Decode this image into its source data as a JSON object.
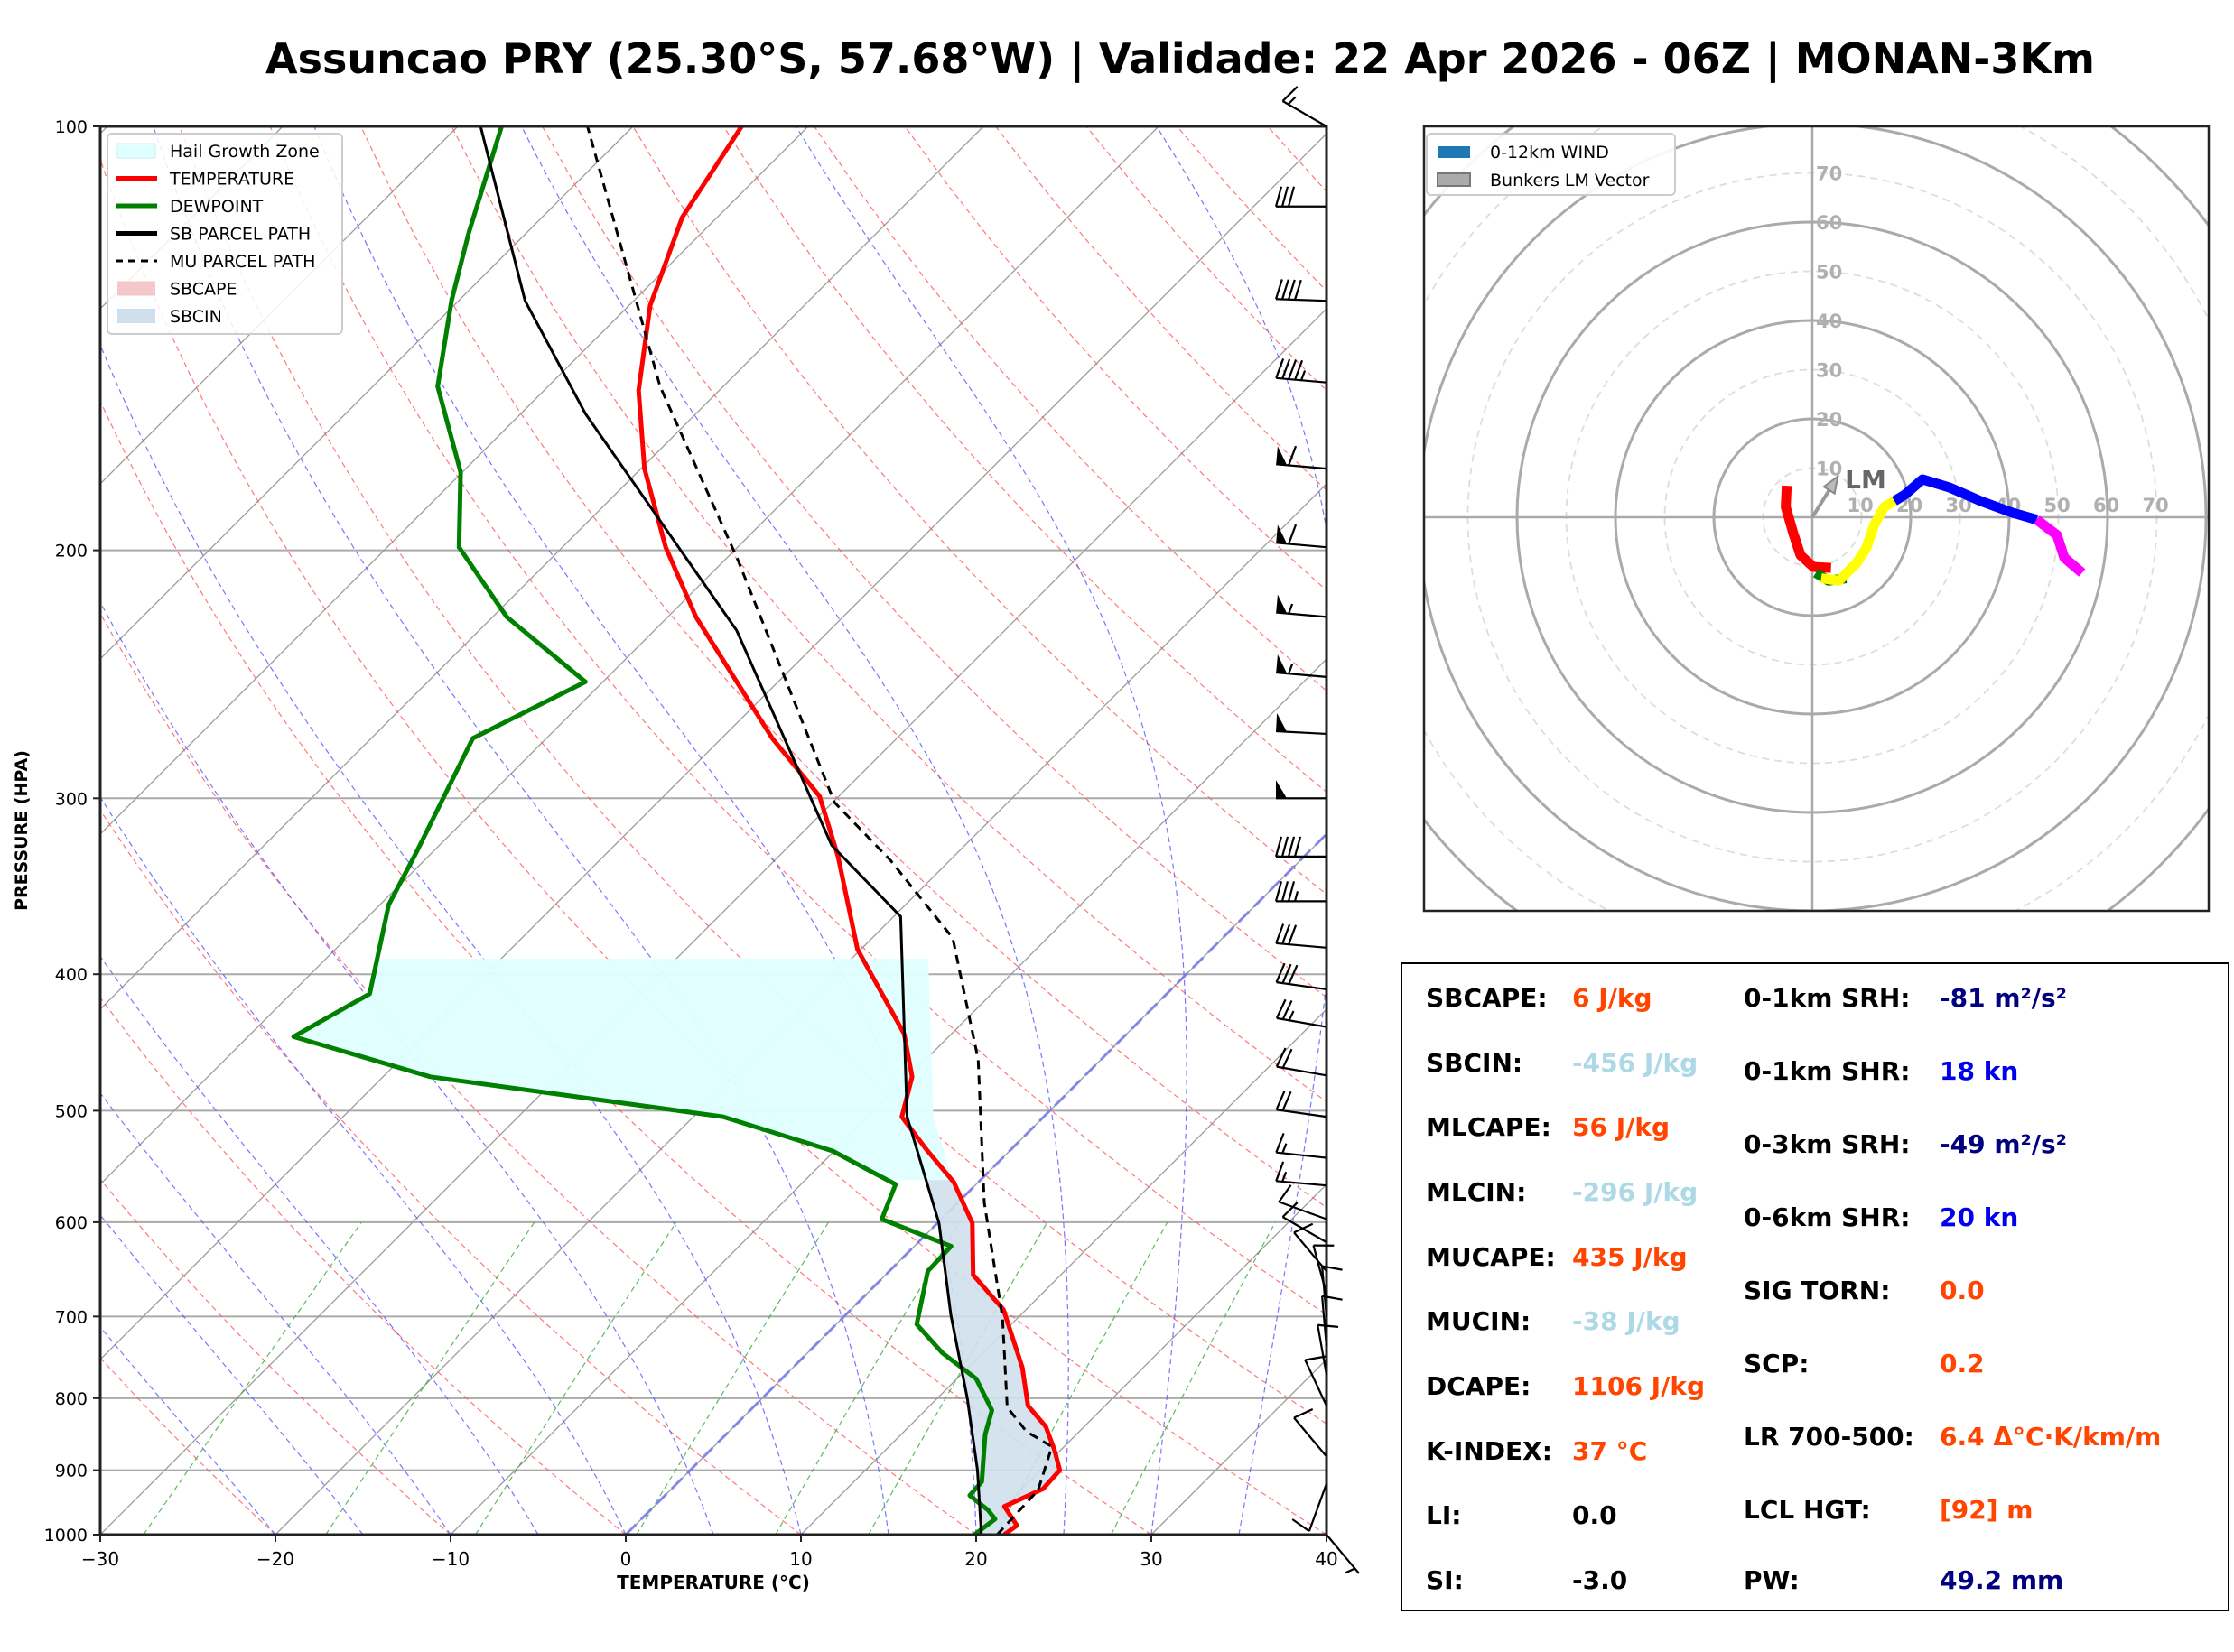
{
  "title": "Assuncao PRY (25.30°S, 57.68°W) | Validade: 22 Apr 2026 - 06Z | MONAN-3Km",
  "chart_data": [
    {
      "type": "line",
      "subtype": "skew-t log-p",
      "xlabel": "TEMPERATURE (°C)",
      "ylabel": "PRESSURE (HPA)",
      "xlim": [
        -30,
        40
      ],
      "ylim": [
        1000,
        100
      ],
      "y_scale": "log",
      "grid": true,
      "x_ticks": [
        -30,
        -20,
        -10,
        0,
        10,
        20,
        30,
        40
      ],
      "x_tick_labels": [
        "−30",
        "−20",
        "−10",
        "0",
        "10",
        "20",
        "30",
        "40"
      ],
      "y_ticks": [
        1000,
        900,
        800,
        700,
        600,
        500,
        400,
        300,
        200,
        100
      ],
      "y_tick_labels": [
        "1000",
        "900",
        "800",
        "700",
        "600",
        "500",
        "400",
        "300",
        "200",
        "100"
      ],
      "legend_position": "top-left",
      "legend": [
        {
          "label": "Hail Growth Zone",
          "kind": "patch",
          "color": "#e0ffff"
        },
        {
          "label": "TEMPERATURE",
          "kind": "line",
          "color": "#ff0000"
        },
        {
          "label": "DEWPOINT",
          "kind": "line",
          "color": "#008000"
        },
        {
          "label": "SB PARCEL PATH",
          "kind": "line",
          "color": "#000000"
        },
        {
          "label": "MU PARCEL PATH",
          "kind": "dashed",
          "color": "#000000"
        },
        {
          "label": "SBCAPE",
          "kind": "patch",
          "color": "#f4c7cb"
        },
        {
          "label": "SBCIN",
          "kind": "patch",
          "color": "#cfe0ec"
        }
      ],
      "series": [
        {
          "name": "TEMPERATURE",
          "color": "#ff0000",
          "points": [
            [
              1000,
              21.6
            ],
            [
              985,
              21.8
            ],
            [
              955,
              20.0
            ],
            [
              928,
              21.2
            ],
            [
              900,
              21.1
            ],
            [
              870,
              19.6
            ],
            [
              838,
              17.8
            ],
            [
              810,
              15.6
            ],
            [
              761,
              13.1
            ],
            [
              692,
              8.7
            ],
            [
              654,
              5.0
            ],
            [
              601,
              2.0
            ],
            [
              562,
              -1.4
            ],
            [
              533,
              -4.8
            ],
            [
              505,
              -8.1
            ],
            [
              473,
              -9.8
            ],
            [
              441,
              -12.7
            ],
            [
              384,
              -20.2
            ],
            [
              330,
              -26.6
            ],
            [
              299,
              -31.1
            ],
            [
              272,
              -37.1
            ],
            [
              223,
              -48.4
            ],
            [
              199,
              -54.1
            ],
            [
              175,
              -59.8
            ],
            [
              154,
              -64.6
            ],
            [
              134,
              -68.8
            ],
            [
              116,
              -72.0
            ],
            [
              100,
              -73.8
            ]
          ]
        },
        {
          "name": "DEWPOINT",
          "color": "#008000",
          "points": [
            [
              1000,
              19.9
            ],
            [
              975,
              20.2
            ],
            [
              961,
              19.3
            ],
            [
              938,
              17.4
            ],
            [
              917,
              17.3
            ],
            [
              849,
              14.8
            ],
            [
              816,
              13.8
            ],
            [
              775,
              11.1
            ],
            [
              743,
              7.7
            ],
            [
              709,
              4.6
            ],
            [
              650,
              2.2
            ],
            [
              624,
              2.1
            ],
            [
              597,
              -3.4
            ],
            [
              564,
              -4.6
            ],
            [
              534,
              -10.1
            ],
            [
              505,
              -18.3
            ],
            [
              473,
              -37.3
            ],
            [
              443,
              -47.4
            ],
            [
              413,
              -45.5
            ],
            [
              357,
              -49.5
            ],
            [
              328,
              -50.9
            ],
            [
              272,
              -54.2
            ],
            [
              248,
              -51.0
            ],
            [
              223,
              -59.2
            ],
            [
              199,
              -65.9
            ],
            [
              176,
              -70.1
            ],
            [
              153,
              -76.3
            ],
            [
              133,
              -80.4
            ],
            [
              119,
              -83.3
            ],
            [
              100,
              -87.5
            ]
          ]
        },
        {
          "name": "SB PARCEL PATH",
          "color": "#000000",
          "points": [
            [
              1000,
              20.3
            ],
            [
              900,
              16.4
            ],
            [
              800,
              11.7
            ],
            [
              698,
              6.0
            ],
            [
              601,
              0.1
            ],
            [
              505,
              -7.8
            ],
            [
              364,
              -19.6
            ],
            [
              324,
              -27.6
            ],
            [
              228,
              -45.3
            ],
            [
              160,
              -66.3
            ],
            [
              133,
              -76.2
            ],
            [
              100,
              -88.7
            ]
          ]
        },
        {
          "name": "MU PARCEL PATH",
          "color": "#000000",
          "dashed": true,
          "points": [
            [
              1000,
              21.2
            ],
            [
              930,
              21.0
            ],
            [
              866,
              19.3
            ],
            [
              845,
              17.0
            ],
            [
              812,
              14.5
            ],
            [
              701,
              9.1
            ],
            [
              581,
              1.5
            ],
            [
              460,
              -7.0
            ],
            [
              377,
              -15.4
            ],
            [
              332,
              -23.4
            ],
            [
              302,
              -29.9
            ],
            [
              203,
              -49.3
            ],
            [
              153,
              -63.6
            ],
            [
              100,
              -82.6
            ]
          ]
        }
      ],
      "hail_growth_zone_hpa": [
        560,
        390
      ],
      "wind_barbs": [
        {
          "p": 100,
          "dir": 300,
          "spd": 15
        },
        {
          "p": 114,
          "dir": 270,
          "spd": 30
        },
        {
          "p": 133,
          "dir": 272,
          "spd": 40
        },
        {
          "p": 152,
          "dir": 275,
          "spd": 45
        },
        {
          "p": 175,
          "dir": 275,
          "spd": 60
        },
        {
          "p": 199,
          "dir": 275,
          "spd": 60
        },
        {
          "p": 223,
          "dir": 275,
          "spd": 55
        },
        {
          "p": 246,
          "dir": 275,
          "spd": 55
        },
        {
          "p": 270,
          "dir": 273,
          "spd": 50
        },
        {
          "p": 300,
          "dir": 270,
          "spd": 50
        },
        {
          "p": 330,
          "dir": 270,
          "spd": 40
        },
        {
          "p": 355,
          "dir": 270,
          "spd": 35
        },
        {
          "p": 383,
          "dir": 275,
          "spd": 30
        },
        {
          "p": 410,
          "dir": 278,
          "spd": 30
        },
        {
          "p": 436,
          "dir": 280,
          "spd": 25
        },
        {
          "p": 472,
          "dir": 280,
          "spd": 20
        },
        {
          "p": 505,
          "dir": 278,
          "spd": 20
        },
        {
          "p": 540,
          "dir": 276,
          "spd": 15
        },
        {
          "p": 565,
          "dir": 275,
          "spd": 15
        },
        {
          "p": 597,
          "dir": 290,
          "spd": 10
        },
        {
          "p": 620,
          "dir": 300,
          "spd": 10
        },
        {
          "p": 650,
          "dir": 320,
          "spd": 10
        },
        {
          "p": 675,
          "dir": 345,
          "spd": 10
        },
        {
          "p": 700,
          "dir": 355,
          "spd": 10
        },
        {
          "p": 735,
          "dir": 355,
          "spd": 10
        },
        {
          "p": 770,
          "dir": 350,
          "spd": 10
        },
        {
          "p": 810,
          "dir": 335,
          "spd": 10
        },
        {
          "p": 880,
          "dir": 320,
          "spd": 10
        },
        {
          "p": 920,
          "dir": 200,
          "spd": 10
        },
        {
          "p": 1000,
          "dir": 140,
          "spd": 5
        }
      ]
    },
    {
      "type": "line",
      "subtype": "hodograph",
      "units": "kt",
      "rings": [
        10,
        20,
        30,
        40,
        50,
        60,
        70
      ],
      "ring_labels": [
        "10",
        "20",
        "30",
        "40",
        "50",
        "60",
        "70"
      ],
      "legend_position": "top-left",
      "legend": [
        {
          "label": "0-12km WIND",
          "color": "#1f77b4"
        },
        {
          "label": "Bunkers LM Vector",
          "color": "#aaaaaa"
        }
      ],
      "segments": [
        {
          "name": "red",
          "color": "#ff0000",
          "uv": [
            [
              -5.2,
              6.4
            ],
            [
              -5.4,
              2.1
            ],
            [
              -3.9,
              -3.1
            ],
            [
              -2.4,
              -7.7
            ],
            [
              0.2,
              -10.1
            ],
            [
              3.8,
              -10.3
            ]
          ]
        },
        {
          "name": "green",
          "color": "#008000",
          "uv": [
            [
              0.7,
              -11.3
            ],
            [
              3.3,
              -12.9
            ],
            [
              6.9,
              -12.4
            ]
          ]
        },
        {
          "name": "yellow",
          "color": "#ffff00",
          "uv": [
            [
              1.8,
              -12.4
            ],
            [
              5.4,
              -12.9
            ],
            [
              9.0,
              -9.3
            ],
            [
              11.0,
              -6.2
            ],
            [
              12.6,
              -1.5
            ],
            [
              14.6,
              2.1
            ],
            [
              16.7,
              3.3
            ]
          ]
        },
        {
          "name": "blue",
          "color": "#0000ff",
          "uv": [
            [
              16.7,
              3.3
            ],
            [
              18.8,
              4.6
            ],
            [
              22.4,
              7.7
            ],
            [
              28.0,
              6.0
            ],
            [
              34.2,
              3.3
            ],
            [
              40.4,
              1.0
            ],
            [
              45.6,
              -0.5
            ]
          ]
        },
        {
          "name": "magenta",
          "color": "#ff00ff",
          "uv": [
            [
              45.6,
              -0.5
            ],
            [
              49.7,
              -3.6
            ],
            [
              51.2,
              -8.2
            ],
            [
              54.8,
              -11.3
            ]
          ]
        }
      ],
      "lm_vector": {
        "label": "LM",
        "u": 4.8,
        "v": 7.7
      }
    }
  ],
  "stats": {
    "left": [
      {
        "label": "SBCAPE:",
        "value": "6 J/kg",
        "color": "#ff4500"
      },
      {
        "label": "SBCIN:",
        "value": "-456 J/kg",
        "color": "#add8e6"
      },
      {
        "label": "MLCAPE:",
        "value": "56 J/kg",
        "color": "#ff4500"
      },
      {
        "label": "MLCIN:",
        "value": "-296 J/kg",
        "color": "#add8e6"
      },
      {
        "label": "MUCAPE:",
        "value": "435 J/kg",
        "color": "#ff4500"
      },
      {
        "label": "MUCIN:",
        "value": "-38 J/kg",
        "color": "#add8e6"
      },
      {
        "label": "DCAPE:",
        "value": "1106 J/kg",
        "color": "#ff4500"
      },
      {
        "label": "K-INDEX:",
        "value": "37 °C",
        "color": "#ff4500"
      },
      {
        "label": "LI:",
        "value": "0.0",
        "color": "#000000"
      },
      {
        "label": "SI:",
        "value": "-3.0",
        "color": "#000000"
      }
    ],
    "right": [
      {
        "label": "0-1km SRH:",
        "value": "-81 m²/s²",
        "color": "#000080"
      },
      {
        "label": "0-1km SHR:",
        "value": "18 kn",
        "color": "#0000ee"
      },
      {
        "label": "0-3km SRH:",
        "value": "-49 m²/s²",
        "color": "#000080"
      },
      {
        "label": "0-6km SHR:",
        "value": "20 kn",
        "color": "#0000ee"
      },
      {
        "label": "SIG TORN:",
        "value": "0.0",
        "color": "#ff4500"
      },
      {
        "label": "SCP:",
        "value": "0.2",
        "color": "#ff4500"
      },
      {
        "label": "LR 700-500:",
        "value": "6.4 Δ°C·K/km/m",
        "color": "#ff4500"
      },
      {
        "label": "LCL HGT:",
        "value": "[92] m",
        "color": "#ff4500"
      },
      {
        "label": "PW:",
        "value": "49.2 mm",
        "color": "#000080"
      }
    ]
  }
}
